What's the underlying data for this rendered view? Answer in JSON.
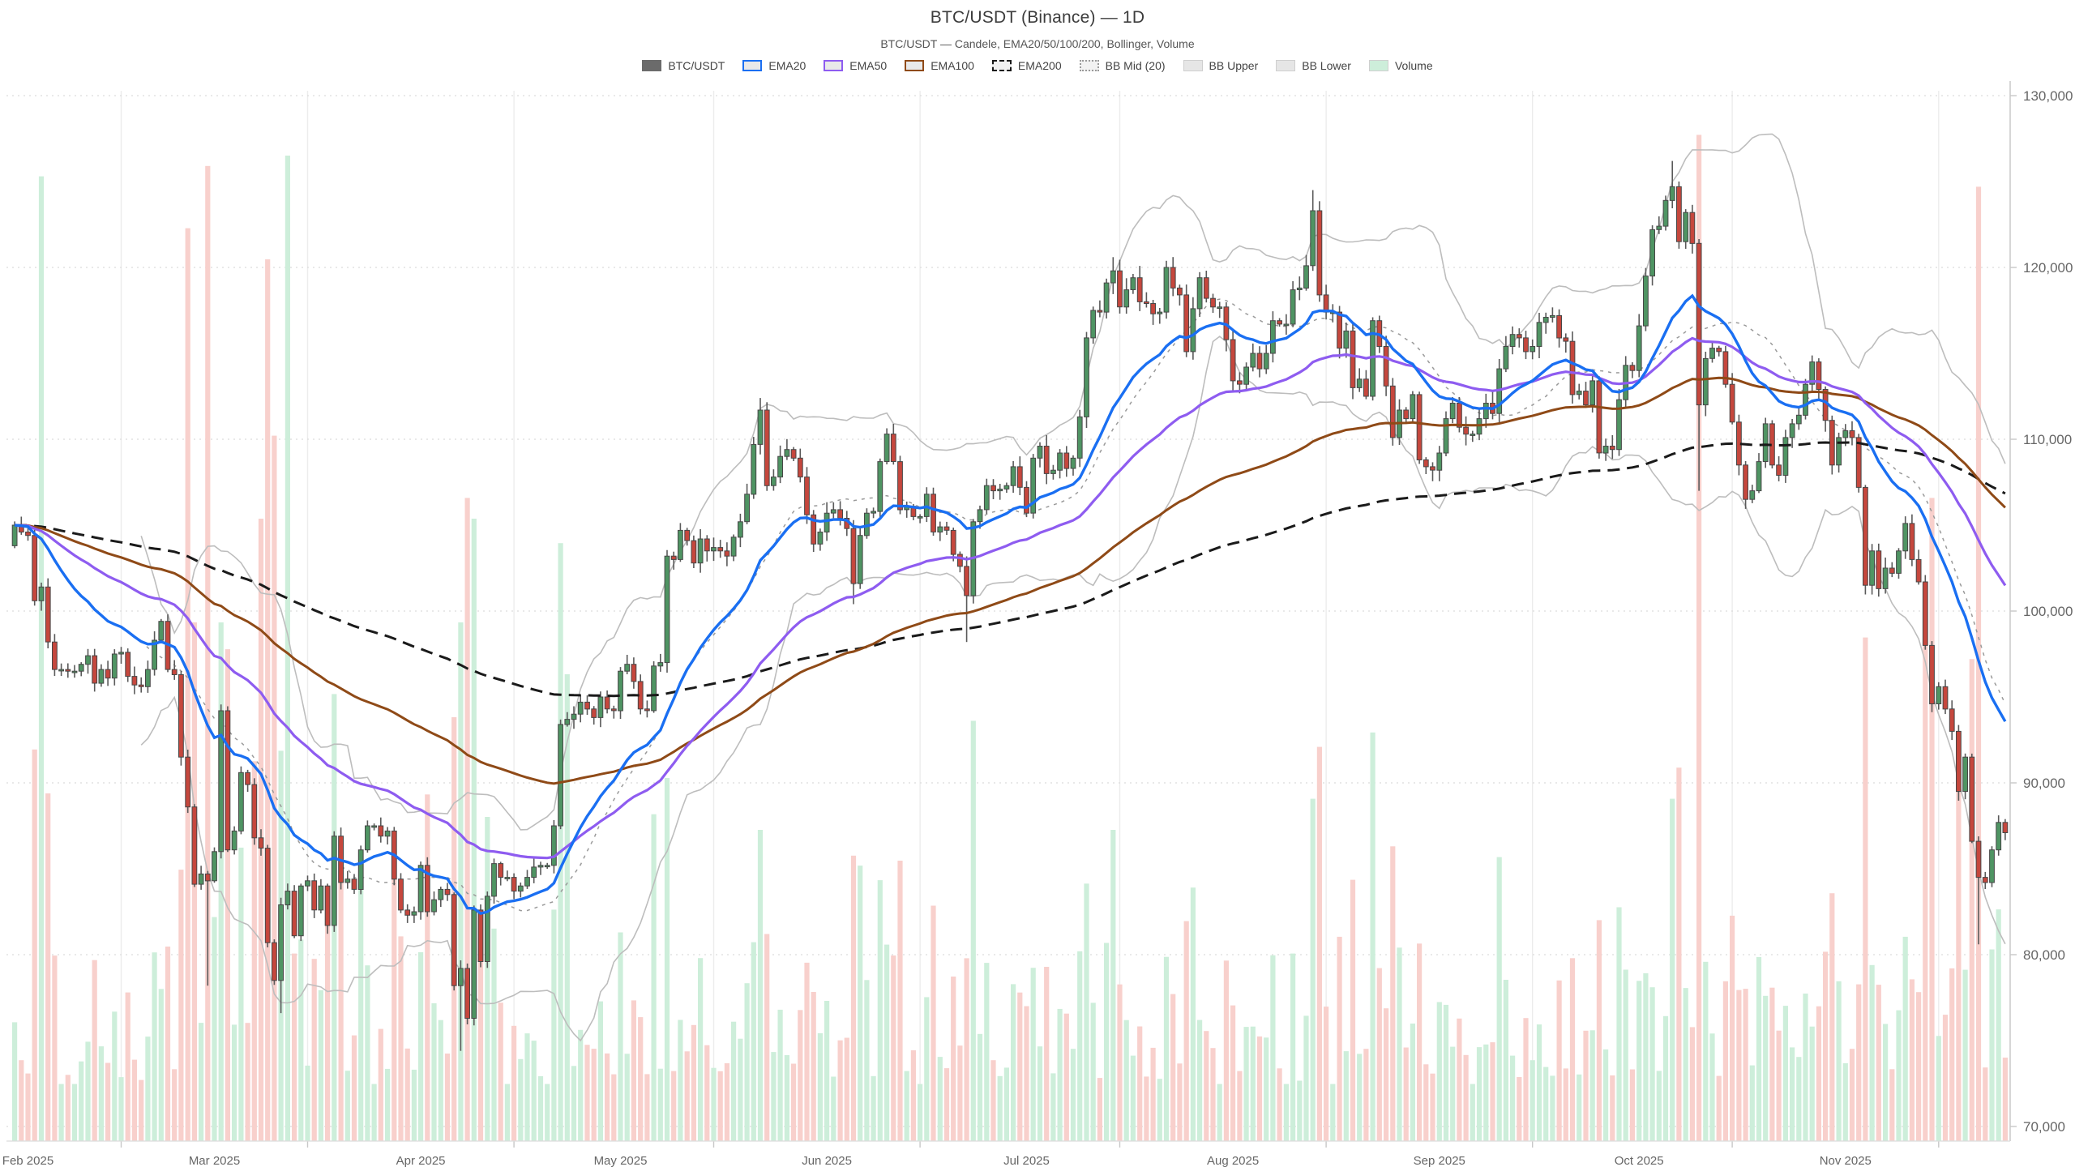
{
  "header": {
    "title": "BTC/USDT (Binance) — 1D",
    "subtitle": "BTC/USDT — Candele, EMA20/50/100/200, Bollinger, Volume"
  },
  "legend": [
    {
      "label": "BTC/USDT",
      "swatch": "solid",
      "color": "#6b6b6b"
    },
    {
      "label": "EMA20",
      "swatch": "line",
      "color": "#1a6ff2"
    },
    {
      "label": "EMA50",
      "swatch": "line",
      "color": "#8e5cf0"
    },
    {
      "label": "EMA100",
      "swatch": "line",
      "color": "#8f4a17"
    },
    {
      "label": "EMA200",
      "swatch": "dashed",
      "color": "#1a1a1a"
    },
    {
      "label": "BB Mid (20)",
      "swatch": "dotted",
      "color": "#9a9a9a"
    },
    {
      "label": "BB Upper",
      "swatch": "fill",
      "color": "#e6e6e6"
    },
    {
      "label": "BB Lower",
      "swatch": "fill",
      "color": "#e6e6e6"
    },
    {
      "label": "Volume",
      "swatch": "fill",
      "color": "#cdeeda"
    }
  ],
  "colors": {
    "up": "#4f9463",
    "down": "#c5473d",
    "candle_border": "#474747",
    "wick": "#5a5a5a",
    "vol_up": "#cdeeda",
    "vol_down": "#f8d0cc",
    "ema20": "#1a6ff2",
    "ema50": "#8e5cf0",
    "ema100": "#8f4a17",
    "ema200": "#1a1a1a",
    "bb": "#bdbdbd",
    "bb_mid": "#9a9a9a",
    "grid": "#dcdcdc",
    "vgrid": "#ececec",
    "axis": "#c8c8c8",
    "label": "#666"
  },
  "axes": {
    "y_ticks": [
      70000,
      80000,
      90000,
      100000,
      110000,
      120000,
      130000
    ],
    "x_months": [
      {
        "label": "Feb 2025",
        "index": 2
      },
      {
        "label": "Mar 2025",
        "index": 30
      },
      {
        "label": "Apr 2025",
        "index": 61
      },
      {
        "label": "May 2025",
        "index": 91
      },
      {
        "label": "Jun 2025",
        "index": 122
      },
      {
        "label": "Jul 2025",
        "index": 152
      },
      {
        "label": "Aug 2025",
        "index": 183
      },
      {
        "label": "Sep 2025",
        "index": 214
      },
      {
        "label": "Oct 2025",
        "index": 244
      },
      {
        "label": "Nov 2025",
        "index": 275
      }
    ]
  },
  "chart_data": {
    "type": "candlestick",
    "symbol": "BTC/USDT",
    "exchange": "Binance",
    "timeframe": "1D",
    "title": "BTC/USDT (Binance) — 1D",
    "y_range": [
      70000,
      130000
    ],
    "grid": true,
    "legend_position": "top-center",
    "indicators": {
      "ema_periods": [
        20,
        50,
        100,
        200
      ],
      "bollinger": {
        "period": 20,
        "mult": 2
      }
    },
    "closes_usd": [
      105000,
      104600,
      104400,
      100600,
      101400,
      98200,
      96600,
      96600,
      96500,
      96500,
      96900,
      97400,
      95800,
      96600,
      96100,
      97500,
      97600,
      96200,
      95700,
      95600,
      96600,
      98300,
      99400,
      96600,
      96300,
      91500,
      88600,
      84100,
      84700,
      84300,
      86000,
      94200,
      86100,
      87200,
      90600,
      89900,
      86800,
      86200,
      80700,
      78500,
      82900,
      83700,
      81100,
      84000,
      84300,
      82600,
      84000,
      81700,
      86900,
      84200,
      84400,
      83800,
      86100,
      87500,
      87500,
      86900,
      87200,
      84400,
      82600,
      82300,
      82500,
      85200,
      82500,
      83200,
      83800,
      83500,
      78200,
      79200,
      76300,
      82600,
      79600,
      83400,
      85300,
      84500,
      84500,
      83700,
      84000,
      84500,
      85100,
      85200,
      85200,
      87500,
      93400,
      93700,
      94000,
      94700,
      94300,
      93800,
      95000,
      94300,
      94200,
      96500,
      96900,
      95900,
      94300,
      94200,
      96800,
      97000,
      103200,
      103000,
      104700,
      104100,
      102800,
      104200,
      103500,
      103700,
      103500,
      103200,
      104300,
      105200,
      106800,
      109700,
      111700,
      107300,
      107800,
      109000,
      109400,
      108900,
      107800,
      105600,
      103900,
      104600,
      105700,
      105900,
      105400,
      104800,
      101600,
      104400,
      105700,
      105800,
      108700,
      110300,
      108700,
      105900,
      106100,
      105500,
      105500,
      106800,
      104600,
      104900,
      104700,
      103300,
      102600,
      100900,
      105200,
      105900,
      107300,
      107000,
      107100,
      107300,
      108400,
      107200,
      105700,
      108900,
      109600,
      108000,
      108200,
      109200,
      108300,
      108900,
      111300,
      115900,
      117500,
      117400,
      119100,
      119800,
      117700,
      118700,
      119400,
      118000,
      117900,
      117300,
      117400,
      120000,
      118800,
      118400,
      115100,
      117600,
      119400,
      118200,
      117700,
      117700,
      115800,
      113400,
      113200,
      114200,
      115000,
      114100,
      115000,
      116900,
      116700,
      116700,
      118700,
      118800,
      120100,
      123300,
      118400,
      117400,
      117400,
      115300,
      116300,
      113000,
      113500,
      112500,
      116900,
      115400,
      113100,
      110100,
      111700,
      111200,
      112600,
      108800,
      108400,
      108200,
      109200,
      111200,
      112100,
      110700,
      110300,
      110300,
      111200,
      112100,
      111500,
      114100,
      115400,
      116100,
      115900,
      115100,
      115400,
      116800,
      117100,
      117200,
      115900,
      115700,
      112600,
      112800,
      112000,
      113400,
      109200,
      109600,
      109400,
      112300,
      114300,
      114000,
      116600,
      119500,
      122200,
      122400,
      123900,
      124700,
      121500,
      123200,
      121400,
      112000,
      114700,
      115300,
      115100,
      113200,
      111000,
      108500,
      106500,
      107000,
      108700,
      110900,
      108500,
      107900,
      110100,
      110900,
      111400,
      113200,
      114500,
      112900,
      111100,
      108500,
      110100,
      110500,
      110100,
      107200,
      101500,
      103500,
      101300,
      102500,
      102200,
      103500,
      105100,
      103000,
      101700,
      98000,
      94600,
      95600,
      94300,
      93000,
      89500,
      91500,
      86600,
      84500,
      84200,
      86100,
      87700,
      87100
    ],
    "open_overrides": {
      "0": 103800
    },
    "high_overrides": {
      "112": 112400,
      "165": 120600,
      "195": 124500,
      "249": 126200
    },
    "low_overrides": {
      "29": 78200,
      "40": 76600,
      "67": 74400,
      "126": 100400,
      "143": 98200,
      "253": 107000,
      "295": 80600
    },
    "volume_fraction_overrides": {
      "4": 0.93,
      "26": 0.88,
      "27": 0.5,
      "29": 0.94,
      "31": 0.5,
      "37": 0.6,
      "38": 0.85,
      "39": 0.68,
      "41": 0.95,
      "67": 0.5,
      "68": 0.62,
      "69": 0.6,
      "83": 0.45,
      "98": 0.35,
      "112": 0.3,
      "165": 0.3,
      "195": 0.33,
      "196": 0.38,
      "249": 0.33,
      "250": 0.36,
      "253": 0.97,
      "287": 0.5,
      "288": 0.62,
      "295": 0.92
    }
  }
}
